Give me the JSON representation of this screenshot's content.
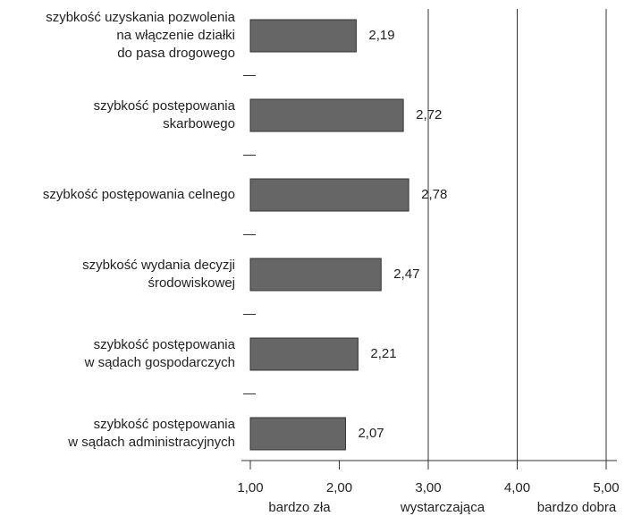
{
  "chart_data": {
    "type": "hbar",
    "categories": [
      [
        "szybkość uzyskania pozwolenia",
        "na włączenie działki",
        "do pasa drogowego"
      ],
      [
        "szybkość postępowania",
        "skarbowego"
      ],
      [
        "szybkość postępowania celnego"
      ],
      [
        "szybkość wydania decyzji",
        "środowiskowej"
      ],
      [
        "szybkość postępowania",
        "w sądach gospodarczych"
      ],
      [
        "szybkość postępowania",
        "w sądach administracyjnych"
      ]
    ],
    "values": [
      2.19,
      2.72,
      2.78,
      2.47,
      2.21,
      2.07
    ],
    "value_labels": [
      "2,19",
      "2,72",
      "2,78",
      "2,47",
      "2,21",
      "2,07"
    ],
    "color": "#666666",
    "xlim": [
      1,
      5
    ],
    "xticks": [
      {
        "value": 1,
        "label": "1,00"
      },
      {
        "value": 2,
        "label": "2,00"
      },
      {
        "value": 3,
        "label": "3,00"
      },
      {
        "value": 4,
        "label": "4,00"
      },
      {
        "value": 5,
        "label": "5,00"
      }
    ],
    "scale_labels": [
      "bardzo zła",
      "wystarczająca",
      "bardzo dobra"
    ],
    "grid": true
  }
}
